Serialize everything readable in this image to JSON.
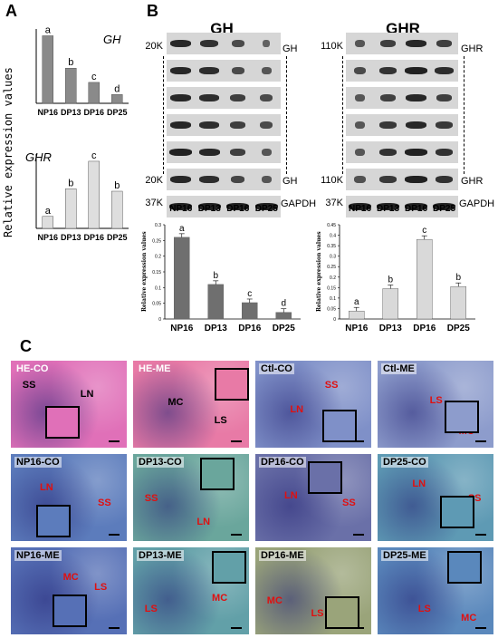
{
  "panels": {
    "a": "A",
    "b": "B",
    "c": "C"
  },
  "panel_a": {
    "ylabel": "Relative expression values",
    "charts": [
      {
        "title": "GH",
        "letters": [
          "a",
          "b",
          "c",
          "d"
        ]
      },
      {
        "title": "GHR",
        "letters": [
          "a",
          "b",
          "c",
          "b"
        ]
      }
    ]
  },
  "blots": [
    {
      "title": "GH",
      "top_mw": "20K",
      "top_band": "GH",
      "bottom_mw": "20K",
      "bottom_band": "GH",
      "ref_mw": "37K",
      "ref_band": "GAPDH"
    },
    {
      "title": "GHR",
      "top_mw": "110K",
      "top_band": "GHR",
      "bottom_mw": "110K",
      "bottom_band": "GHR",
      "ref_mw": "37K",
      "ref_band": "GAPDH"
    }
  ],
  "lanes": [
    "NP16",
    "DP13",
    "DP16",
    "DP25"
  ],
  "panel_b": {
    "ylabel": "Relative expression values",
    "charts": [
      {
        "letters": [
          "a",
          "b",
          "c",
          "d"
        ]
      },
      {
        "letters": [
          "a",
          "b",
          "c",
          "b"
        ]
      }
    ]
  },
  "chart_data": [
    {
      "type": "bar",
      "title": "GH",
      "categories": [
        "NP16",
        "DP13",
        "DP16",
        "DP25"
      ],
      "values": [
        1.0,
        0.52,
        0.31,
        0.13
      ],
      "ylim": [
        0,
        1.1
      ],
      "ylabel": "Relative expression values",
      "color": "#8a8a8a"
    },
    {
      "type": "bar",
      "title": "GHR",
      "categories": [
        "NP16",
        "DP13",
        "DP16",
        "DP25"
      ],
      "values": [
        1.0,
        3.3,
        5.6,
        3.1
      ],
      "ylim": [
        0,
        6.2
      ],
      "ylabel": "Relative expression values",
      "color": "#dedede"
    },
    {
      "type": "bar",
      "categories": [
        "NP16",
        "DP13",
        "DP16",
        "DP25"
      ],
      "values": [
        0.26,
        0.11,
        0.052,
        0.021
      ],
      "ylim": [
        0,
        0.3
      ],
      "yticks": [
        0,
        0.05,
        0.1,
        0.15,
        0.2,
        0.25,
        0.3
      ],
      "ylabel": "Relative expression values",
      "color": "#6f6f6f"
    },
    {
      "type": "bar",
      "categories": [
        "NP16",
        "DP13",
        "DP16",
        "DP25"
      ],
      "values": [
        0.038,
        0.145,
        0.38,
        0.155
      ],
      "ylim": [
        0,
        0.45
      ],
      "yticks": [
        0,
        0.05,
        0.1,
        0.15,
        0.2,
        0.25,
        0.3,
        0.35,
        0.4,
        0.45
      ],
      "ylabel": "Relative expression values",
      "color": "#d9d9d9"
    }
  ],
  "tiles": [
    {
      "label": "HE-CO",
      "regions": [
        "SS",
        "LN"
      ],
      "bg": "#e070b8"
    },
    {
      "label": "HE-ME",
      "regions": [
        "MC",
        "LS"
      ],
      "bg": "#e87aa6"
    },
    {
      "label": "Ctl-CO",
      "regions": [
        "SS",
        "LN"
      ],
      "bg": "#7f90c8"
    },
    {
      "label": "Ctl-ME",
      "regions": [
        "LS",
        "MC"
      ],
      "bg": "#8d9ccc"
    },
    {
      "label": "NP16-CO",
      "regions": [
        "LN",
        "SS"
      ],
      "bg": "#5c7cbc"
    },
    {
      "label": "DP13-CO",
      "regions": [
        "SS",
        "LN"
      ],
      "bg": "#6aa69c"
    },
    {
      "label": "DP16-CO",
      "regions": [
        "LN",
        "SS"
      ],
      "bg": "#6a70a8"
    },
    {
      "label": "DP25-CO",
      "regions": [
        "LN",
        "SS"
      ],
      "bg": "#5e9ab4"
    },
    {
      "label": "NP16-ME",
      "regions": [
        "MC",
        "LS"
      ],
      "bg": "#5670b6"
    },
    {
      "label": "DP13-ME",
      "regions": [
        "LS",
        "MC"
      ],
      "bg": "#62a0a8"
    },
    {
      "label": "DP16-ME",
      "regions": [
        "MC",
        "LS"
      ],
      "bg": "#9aa47a"
    },
    {
      "label": "DP25-ME",
      "regions": [
        "LS",
        "MC"
      ],
      "bg": "#5a88bc"
    }
  ]
}
